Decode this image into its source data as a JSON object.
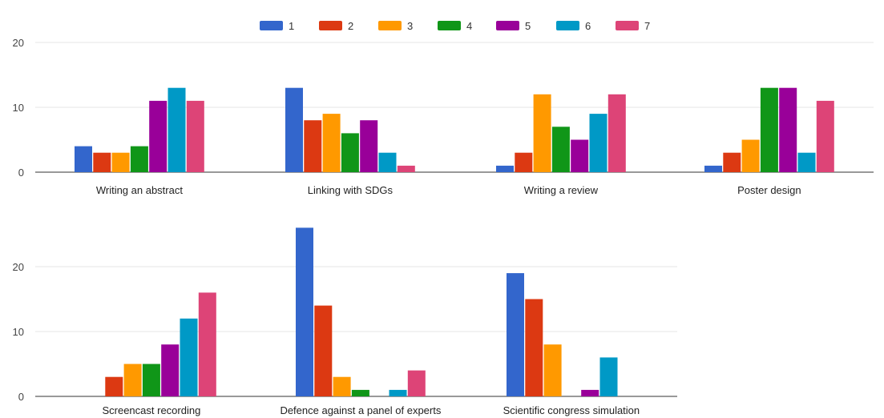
{
  "chart_data": {
    "type": "bar",
    "legend_position": "top",
    "grid": true,
    "series": [
      {
        "name": "1",
        "color": "#3366cc"
      },
      {
        "name": "2",
        "color": "#dc3912"
      },
      {
        "name": "3",
        "color": "#ff9900"
      },
      {
        "name": "4",
        "color": "#109618"
      },
      {
        "name": "5",
        "color": "#990099"
      },
      {
        "name": "6",
        "color": "#0099c6"
      },
      {
        "name": "7",
        "color": "#dd4477"
      }
    ],
    "ylim": [
      0,
      20
    ],
    "yticks": [
      0,
      10,
      20
    ],
    "rows": [
      {
        "categories": [
          "Writing an abstract",
          "Linking with SDGs",
          "Writing a review",
          "Poster design"
        ],
        "values": [
          [
            4,
            3,
            3,
            4,
            11,
            13,
            11
          ],
          [
            13,
            8,
            9,
            6,
            8,
            3,
            1
          ],
          [
            1,
            3,
            12,
            7,
            5,
            9,
            12
          ],
          [
            1,
            3,
            5,
            13,
            13,
            3,
            11
          ]
        ]
      },
      {
        "categories": [
          "Screencast recording",
          "Defence against a panel of experts",
          "Scientific congress simulation"
        ],
        "values": [
          [
            0,
            3,
            5,
            5,
            8,
            12,
            16
          ],
          [
            26,
            14,
            3,
            1,
            0,
            1,
            4
          ],
          [
            19,
            15,
            8,
            0,
            1,
            6,
            0
          ]
        ]
      }
    ]
  }
}
